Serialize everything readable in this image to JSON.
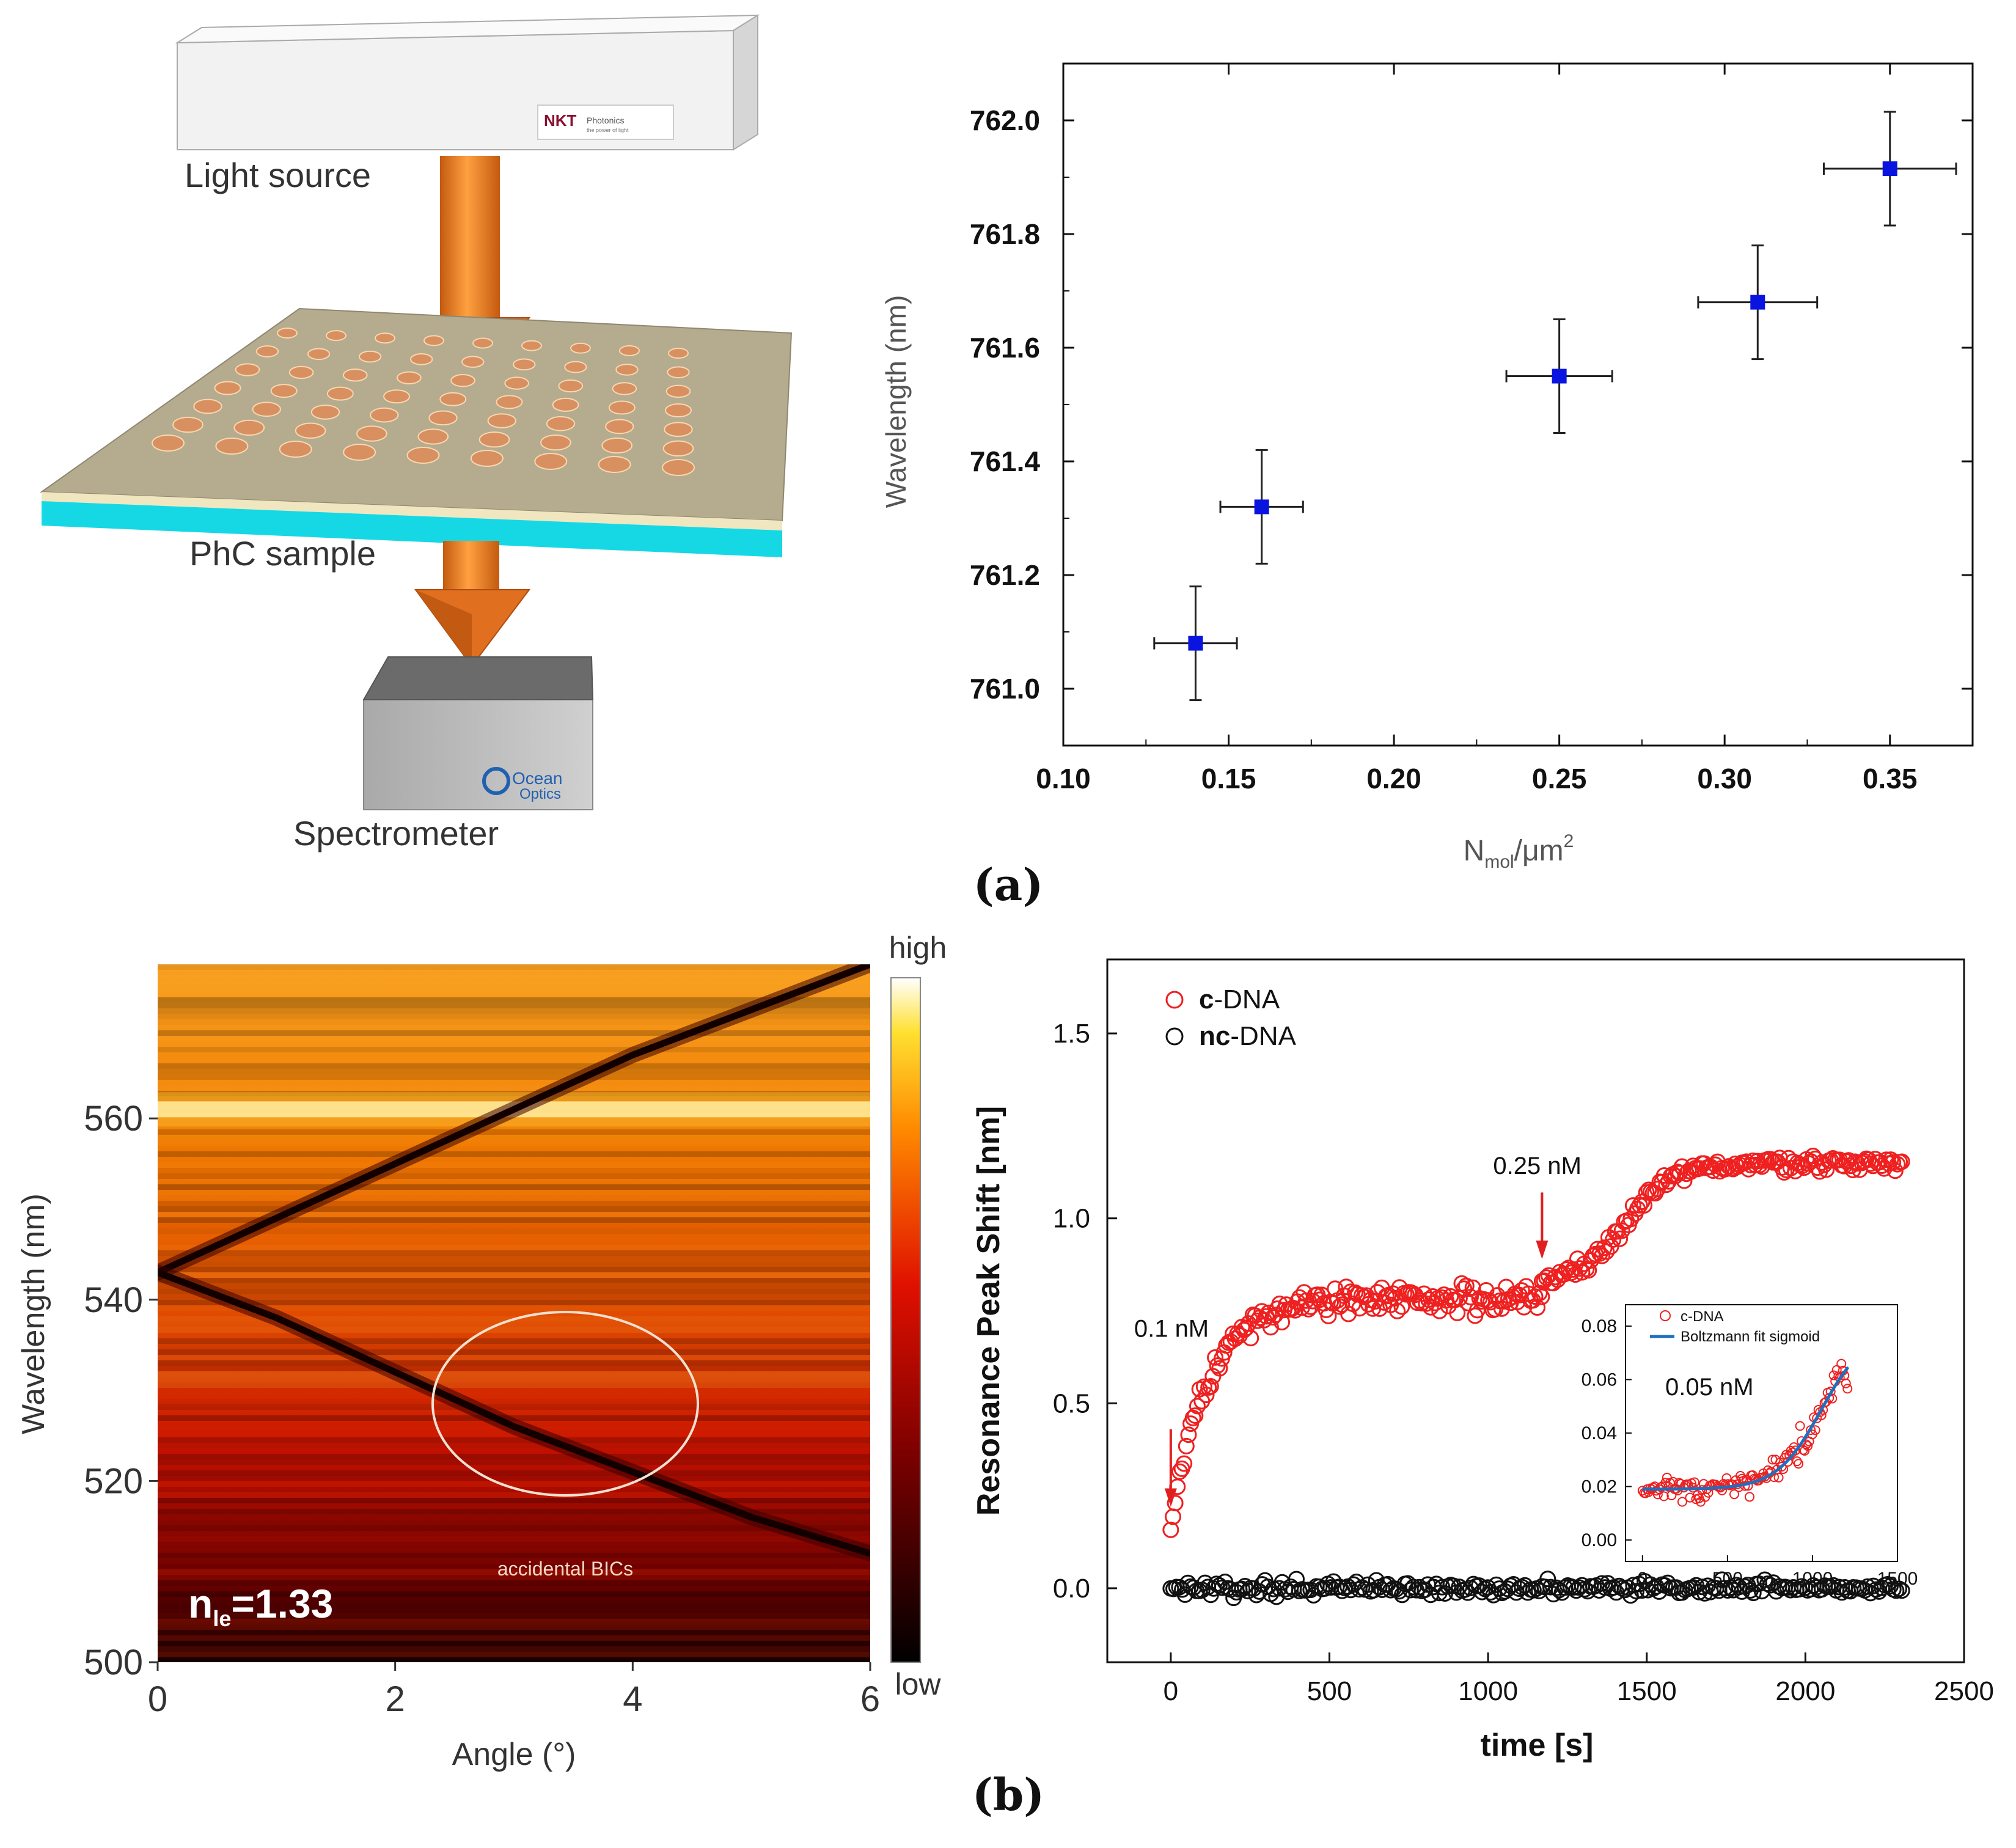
{
  "panel_labels": {
    "a": "(a)",
    "b": "(b)"
  },
  "setup": {
    "light_source_label": "Light source",
    "sample_label": "PhC sample",
    "spectrometer_label": "Spectrometer",
    "source_brand": "NKT",
    "source_brand_sub": "Photonics",
    "source_brand_tag": "the power of light",
    "spectrometer_brand_line1": "Ocean",
    "spectrometer_brand_line2": "Optics",
    "colors": {
      "beam": "#f08020",
      "slab": "#b5ab8f",
      "substrate": "#16d8e4",
      "box": "#b8b8b8"
    }
  },
  "chart_data": [
    {
      "id": "scatter_a",
      "type": "scatter",
      "title": "",
      "xlabel": "N",
      "xlabel_sub": "mol",
      "xlabel_tail": "/μm",
      "xlabel_sup": "2",
      "ylabel": "Wavelength (nm)",
      "xlim": [
        0.1,
        0.375
      ],
      "ylim": [
        760.9,
        762.1
      ],
      "xticks": [
        0.1,
        0.15,
        0.2,
        0.25,
        0.3,
        0.35
      ],
      "xtick_labels": [
        "0.10",
        "0.15",
        "0.20",
        "0.25",
        "0.30",
        "0.35"
      ],
      "yticks": [
        761.0,
        761.2,
        761.4,
        761.6,
        761.8,
        762.0
      ],
      "ytick_labels": [
        "761.0",
        "761.2",
        "761.4",
        "761.6",
        "761.8",
        "762.0"
      ],
      "marker_color": "#0a14e0",
      "points": [
        {
          "x": 0.14,
          "y": 761.08,
          "xerr": 0.0125,
          "yerr": 0.1
        },
        {
          "x": 0.16,
          "y": 761.32,
          "xerr": 0.0125,
          "yerr": 0.1
        },
        {
          "x": 0.25,
          "y": 761.55,
          "xerr": 0.016,
          "yerr": 0.1
        },
        {
          "x": 0.31,
          "y": 761.68,
          "xerr": 0.018,
          "yerr": 0.1
        },
        {
          "x": 0.35,
          "y": 761.915,
          "xerr": 0.02,
          "yerr": 0.1
        }
      ]
    },
    {
      "id": "heatmap_b",
      "type": "heatmap",
      "xlabel": "Angle (°)",
      "ylabel": "Wavelength (nm)",
      "xlim": [
        0,
        6
      ],
      "ylim": [
        500,
        577
      ],
      "xticks": [
        0,
        2,
        4,
        6
      ],
      "xtick_labels": [
        "0",
        "2",
        "4",
        "6"
      ],
      "yticks": [
        500,
        520,
        540,
        560
      ],
      "ytick_labels": [
        "500",
        "520",
        "540",
        "560"
      ],
      "colorbar_high": "high",
      "colorbar_low": "low",
      "annotation": "accidental BICs",
      "index_label": "n",
      "index_label_sub": "le",
      "index_label_value": "=1.33",
      "bands": [
        {
          "name": "upper band",
          "points": [
            [
              0,
              543
            ],
            [
              1,
              549
            ],
            [
              2,
              555
            ],
            [
              3,
              561
            ],
            [
              4,
              567
            ],
            [
              5,
              572
            ],
            [
              6,
              577
            ]
          ]
        },
        {
          "name": "lower band",
          "points": [
            [
              0,
              543
            ],
            [
              1,
              538
            ],
            [
              2,
              532
            ],
            [
              3,
              526
            ],
            [
              4,
              521
            ],
            [
              5,
              516
            ],
            [
              6,
              512
            ]
          ]
        }
      ],
      "bright_stripe_nm": 561
    },
    {
      "id": "kinetics_b",
      "type": "scatter",
      "xlabel": "time [s]",
      "ylabel": "Resonance Peak Shift [nm]",
      "xlim": [
        -200,
        2500
      ],
      "ylim": [
        -0.2,
        1.7
      ],
      "xticks": [
        0,
        500,
        1000,
        1500,
        2000,
        2500
      ],
      "xtick_labels": [
        "0",
        "500",
        "1000",
        "1500",
        "2000",
        "2500"
      ],
      "yticks": [
        0.0,
        0.5,
        1.0,
        1.5
      ],
      "ytick_labels": [
        "0.0",
        "0.5",
        "1.0",
        "1.5"
      ],
      "legend": [
        {
          "bold": "c",
          "rest": "-DNA",
          "color": "#ee2020"
        },
        {
          "bold": "nc",
          "rest": "-DNA",
          "color": "#111111"
        }
      ],
      "annotations": [
        {
          "text": "0.1 nM",
          "x": 0
        },
        {
          "text": "0.25 nM",
          "x": 1170
        }
      ],
      "series": [
        {
          "name": "c-DNA",
          "color": "#ee2020",
          "segments": [
            {
              "t0": 0,
              "t1": 1170,
              "y0": 0.15,
              "yinf": 0.78,
              "tau": 110,
              "noise": 0.035
            },
            {
              "t0": 1170,
              "t1": 2310,
              "y0": 0.82,
              "ymax": 1.15,
              "mid": 1430,
              "width": 80,
              "noise": 0.02
            }
          ]
        },
        {
          "name": "nc-DNA",
          "color": "#111111",
          "t0": 0,
          "t1": 2310,
          "mean": 0.0,
          "noise": 0.018
        }
      ],
      "inset": {
        "xlim": [
          -100,
          1500
        ],
        "ylim": [
          -0.008,
          0.088
        ],
        "xticks": [
          0,
          500,
          1000,
          1500
        ],
        "xtick_labels": [
          "0",
          "500",
          "1000",
          "1500"
        ],
        "yticks": [
          0.0,
          0.02,
          0.04,
          0.06,
          0.08
        ],
        "ytick_labels": [
          "0.00",
          "0.02",
          "0.04",
          "0.06",
          "0.08"
        ],
        "legend": [
          "c-DNA",
          "Boltzmann fit sigmoid"
        ],
        "annotation": "0.05 nM",
        "fit_color": "#1f6fbf",
        "fit": {
          "A1": 0.019,
          "A2": 0.078,
          "x0": 1050,
          "dx": 130
        }
      }
    }
  ]
}
